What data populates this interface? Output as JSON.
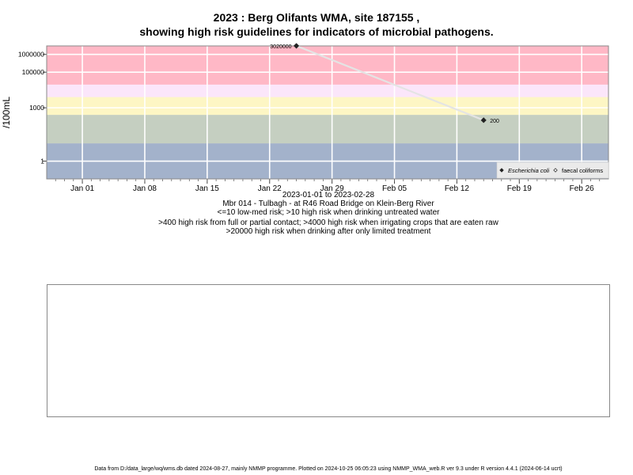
{
  "title_line1": "2023 : Berg Olifants WMA, site 187155 ,",
  "title_line2": "showing high risk guidelines for indicators of microbial pathogens.",
  "captions": [
    "2023-01-01 to 2023-02-28",
    "Mbr 014 - Tulbagh - at R46 Road Bridge on Klein-Berg River",
    "<=10 low-med risk; >10 high risk when drinking untreated water",
    ">400 high risk from full or partial contact; >4000 high risk when irrigating crops that are eaten raw",
    ">20000 high risk when drinking after only limited treatment"
  ],
  "footer": "Data from D:/data_large/wq/wms.db dated 2024-08-27, mainly NMMP programme. Plotted on 2024-10-25 06:05:23 using NMMP_WMA_web.R ver 9.3 under R version 4.4.1 (2024-06-14 ucrt)",
  "chart_data": {
    "type": "line",
    "ylabel": "/100mL",
    "xlabel": "",
    "y_scale": "log",
    "grid": true,
    "legend_position": "bottom-right",
    "x_ticks": [
      "Jan 01",
      "Jan 08",
      "Jan 15",
      "Jan 22",
      "Jan 29",
      "Feb 05",
      "Feb 12",
      "Feb 19",
      "Feb 26"
    ],
    "x_tick_dates": [
      "2023-01-01",
      "2023-01-08",
      "2023-01-15",
      "2023-01-22",
      "2023-01-29",
      "2023-02-05",
      "2023-02-12",
      "2023-02-19",
      "2023-02-26"
    ],
    "xlim": [
      "2022-12-28",
      "2023-03-01"
    ],
    "y_ticks": [
      {
        "value": 1,
        "label": "1"
      },
      {
        "value": 1000,
        "label": "1000"
      },
      {
        "value": 100000,
        "label": "100000"
      },
      {
        "value": 1000000,
        "label": "1000000"
      }
    ],
    "ylim": [
      0.1,
      3000000
    ],
    "risk_bands": [
      {
        "from": 0.1,
        "to": 10,
        "color": "#a3b2cb"
      },
      {
        "from": 10,
        "to": 400,
        "color": "#c5cfc1"
      },
      {
        "from": 400,
        "to": 4000,
        "color": "#fdf6c4"
      },
      {
        "from": 4000,
        "to": 20000,
        "color": "#fbe6fa"
      },
      {
        "from": 20000,
        "to": 3000000,
        "color": "#ffb8c6"
      }
    ],
    "series": [
      {
        "name": "Escherichia coli",
        "marker": "filled-diamond",
        "color": "#222222",
        "points": [
          {
            "x": "2023-01-25",
            "y": 3020000,
            "label": "3020000"
          },
          {
            "x": "2023-02-15",
            "y": 200,
            "label": "200"
          }
        ]
      },
      {
        "name": "faecal coliforms",
        "marker": "open-diamond",
        "color": "#222222",
        "points": []
      }
    ]
  }
}
